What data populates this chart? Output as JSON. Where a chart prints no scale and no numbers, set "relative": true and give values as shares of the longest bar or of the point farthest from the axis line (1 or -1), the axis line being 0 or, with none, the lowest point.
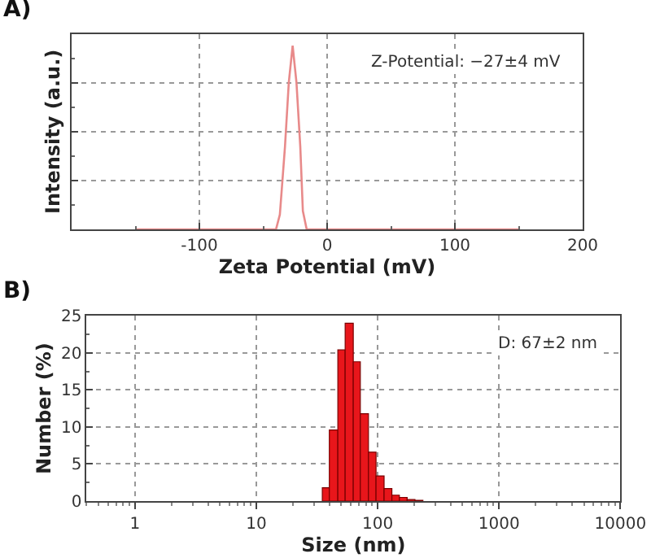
{
  "chart_data": [
    {
      "type": "line",
      "title": "A)",
      "xlabel": "Zeta Potential (mV)",
      "ylabel": "Intensity (a.u.)",
      "relative": true,
      "tick_labels": "x",
      "grid": true,
      "x": [
        -150,
        -40,
        -37,
        -33,
        -30,
        -27,
        -24,
        -21,
        -19,
        -16,
        150
      ],
      "series": [
        {
          "color": "#e88a8a",
          "values": [
            0,
            0,
            0.08,
            0.45,
            0.8,
            1,
            0.8,
            0.45,
            0.1,
            0,
            0
          ]
        }
      ],
      "xlim": [
        -200,
        200
      ],
      "xticks": [
        -100,
        0,
        100,
        200
      ],
      "annotations": [
        "Z-Potential: −27±4 mV"
      ]
    },
    {
      "type": "histogram",
      "title": "B)",
      "xlabel": "Size (nm)",
      "ylabel": "Number (%)",
      "color": "#e8161b",
      "log": "x",
      "grid": true,
      "bins": [
        35,
        40,
        47,
        54,
        63,
        72,
        84,
        97,
        113,
        131,
        151,
        175,
        203,
        236
      ],
      "values": [
        1.8,
        9.6,
        20.4,
        24,
        18.8,
        11.8,
        6.6,
        3.4,
        1.7,
        0.8,
        0.5,
        0.2,
        0.1
      ],
      "xlim": [
        0.4,
        10000
      ],
      "xticks": [
        1,
        10,
        100,
        1000,
        10000
      ],
      "ylim": [
        0,
        25
      ],
      "yticks": [
        0,
        5,
        10,
        15,
        20,
        25
      ],
      "annotations": [
        "D: 67±2 nm"
      ]
    }
  ]
}
